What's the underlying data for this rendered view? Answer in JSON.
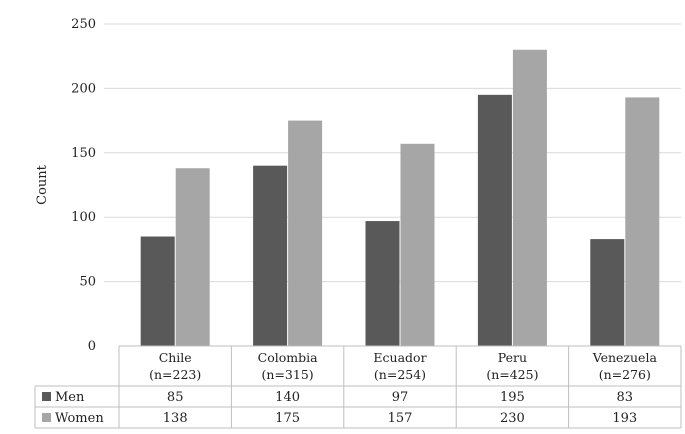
{
  "chart_data": {
    "type": "bar",
    "title": "",
    "xlabel": "",
    "ylabel": "Count",
    "ylim": [
      0,
      250
    ],
    "yticks": [
      0,
      50,
      100,
      150,
      200,
      250
    ],
    "grid": true,
    "legend": "data-table-left",
    "categories": [
      "Chile",
      "Colombia",
      "Ecuador",
      "Peru",
      "Venezuela"
    ],
    "category_sublabels": [
      "(n=223)",
      "(n=315)",
      "(n=254)",
      "(n=425)",
      "(n=276)"
    ],
    "series": [
      {
        "name": "Men",
        "values": [
          85,
          140,
          97,
          195,
          83
        ],
        "color": "#595959"
      },
      {
        "name": "Women",
        "values": [
          138,
          175,
          157,
          230,
          193
        ],
        "color": "#a6a6a6"
      }
    ]
  }
}
